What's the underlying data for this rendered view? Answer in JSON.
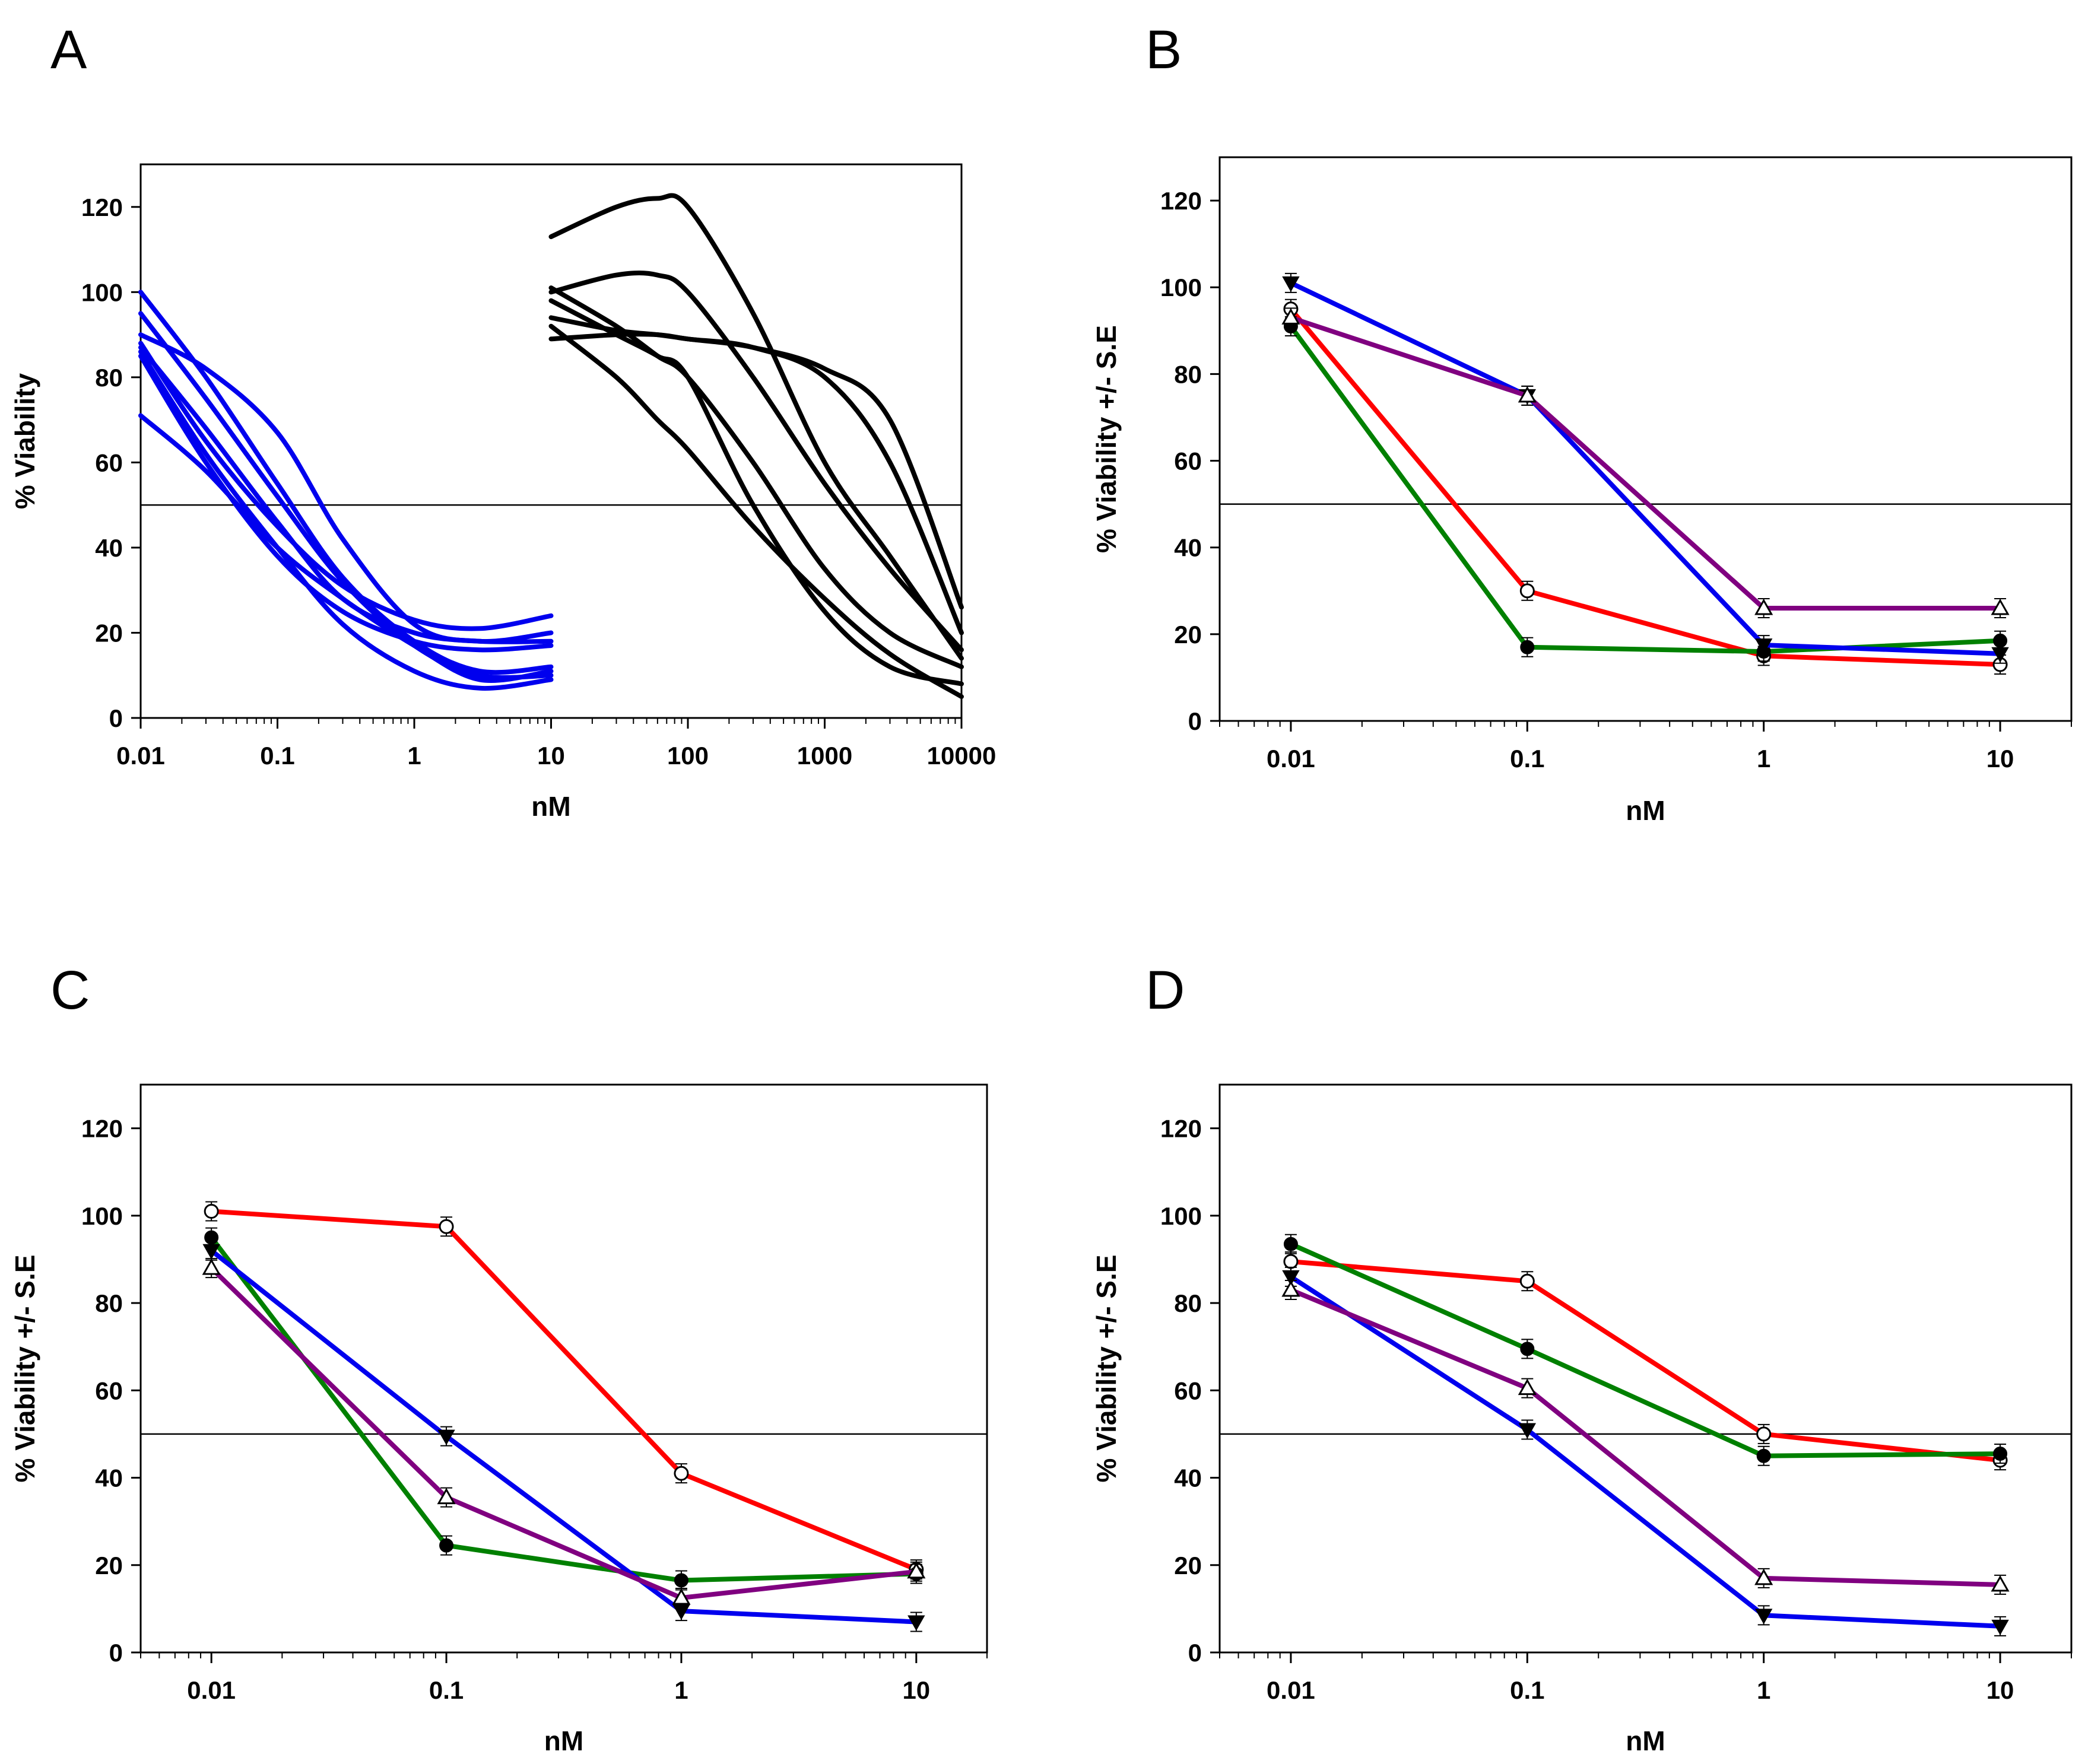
{
  "chart_data": [
    {
      "panel": "A",
      "type": "line",
      "title": "",
      "xlabel": "nM",
      "ylabel": "% Viability",
      "xscale": "log",
      "xlim": [
        0.01,
        10000
      ],
      "ylim": [
        0,
        130
      ],
      "xticks": [
        0.01,
        0.1,
        1,
        10,
        100,
        1000,
        10000
      ],
      "xtick_labels": [
        "0.01",
        "0.1",
        "1",
        "10",
        "100",
        "1000",
        "10000"
      ],
      "yticks": [
        0,
        20,
        40,
        60,
        80,
        100,
        120
      ],
      "ytick_labels": [
        "0",
        "20",
        "40",
        "60",
        "80",
        "100",
        "120"
      ],
      "reference_line": 50,
      "series": [
        {
          "name": "blue-curve-1",
          "color": "#0000ee",
          "x": [
            0.01,
            0.03,
            0.1,
            0.3,
            1,
            3,
            10
          ],
          "values": [
            100,
            80,
            55,
            33,
            18,
            11,
            12
          ]
        },
        {
          "name": "blue-curve-2",
          "color": "#0000ee",
          "x": [
            0.01,
            0.03,
            0.1,
            0.3,
            1,
            3,
            10
          ],
          "values": [
            95,
            75,
            52,
            32,
            17,
            10,
            10
          ]
        },
        {
          "name": "blue-curve-3",
          "color": "#0000ee",
          "x": [
            0.01,
            0.03,
            0.1,
            0.3,
            1,
            3,
            10
          ],
          "values": [
            90,
            82,
            67,
            42,
            22,
            18,
            20
          ]
        },
        {
          "name": "blue-curve-4",
          "color": "#0000ee",
          "x": [
            0.01,
            0.03,
            0.1,
            0.3,
            1,
            3,
            10
          ],
          "values": [
            88,
            65,
            45,
            31,
            23,
            21,
            24
          ]
        },
        {
          "name": "blue-curve-5",
          "color": "#0000ee",
          "x": [
            0.01,
            0.03,
            0.1,
            0.3,
            1,
            3,
            10
          ],
          "values": [
            87,
            68,
            46,
            28,
            20,
            18,
            18
          ]
        },
        {
          "name": "blue-curve-6",
          "color": "#0000ee",
          "x": [
            0.01,
            0.03,
            0.1,
            0.3,
            1,
            3,
            10
          ],
          "values": [
            86,
            62,
            40,
            22,
            11,
            7,
            9
          ]
        },
        {
          "name": "blue-curve-7",
          "color": "#0000ee",
          "x": [
            0.01,
            0.03,
            0.1,
            0.3,
            1,
            3,
            10
          ],
          "values": [
            85,
            60,
            38,
            25,
            18,
            16,
            17
          ]
        },
        {
          "name": "blue-curve-8",
          "color": "#0000ee",
          "x": [
            0.01,
            0.03,
            0.1,
            0.3,
            1,
            3,
            10
          ],
          "values": [
            71,
            58,
            40,
            28,
            17,
            9,
            11
          ]
        },
        {
          "name": "black-curve-1",
          "color": "#000000",
          "x": [
            10,
            30,
            60,
            100,
            300,
            1000,
            3000,
            10000
          ],
          "values": [
            113,
            120,
            122,
            120,
            95,
            60,
            38,
            14
          ]
        },
        {
          "name": "black-curve-2",
          "color": "#000000",
          "x": [
            10,
            30,
            60,
            100,
            300,
            1000,
            3000,
            10000
          ],
          "values": [
            100,
            104,
            104,
            100,
            80,
            55,
            35,
            16
          ]
        },
        {
          "name": "black-curve-3",
          "color": "#000000",
          "x": [
            10,
            30,
            60,
            100,
            300,
            1000,
            3000,
            10000
          ],
          "values": [
            101,
            92,
            85,
            80,
            60,
            35,
            20,
            12
          ]
        },
        {
          "name": "black-curve-4",
          "color": "#000000",
          "x": [
            10,
            30,
            60,
            100,
            300,
            1000,
            3000,
            10000
          ],
          "values": [
            98,
            90,
            85,
            80,
            50,
            25,
            12,
            8
          ]
        },
        {
          "name": "black-curve-5",
          "color": "#000000",
          "x": [
            10,
            30,
            60,
            100,
            300,
            1000,
            3000,
            10000
          ],
          "values": [
            94,
            91,
            90,
            89,
            87,
            80,
            60,
            20
          ]
        },
        {
          "name": "black-curve-6",
          "color": "#000000",
          "x": [
            10,
            30,
            60,
            100,
            300,
            1000,
            3000,
            10000
          ],
          "values": [
            92,
            80,
            70,
            63,
            45,
            28,
            15,
            5
          ]
        },
        {
          "name": "black-curve-7",
          "color": "#000000",
          "x": [
            10,
            30,
            60,
            100,
            300,
            1000,
            3000,
            10000
          ],
          "values": [
            89,
            90,
            90,
            89,
            87,
            82,
            70,
            26
          ]
        }
      ]
    },
    {
      "panel": "B",
      "type": "line",
      "title": "",
      "xlabel": "nM",
      "ylabel": "% Viability +/- S.E",
      "xscale": "log",
      "xlim": [
        0.005,
        20
      ],
      "ylim": [
        0,
        130
      ],
      "xticks": [
        0.01,
        0.1,
        1,
        10
      ],
      "xtick_labels": [
        "0.01",
        "0.1",
        "1",
        "10"
      ],
      "yticks": [
        0,
        20,
        40,
        60,
        80,
        100,
        120
      ],
      "ytick_labels": [
        "0",
        "20",
        "40",
        "60",
        "80",
        "100",
        "120"
      ],
      "reference_line": 50,
      "x": [
        0.01,
        0.1,
        1,
        10
      ],
      "series": [
        {
          "name": "red-open-circle",
          "color": "#ff0000",
          "marker": "open-circle",
          "values": [
            95,
            30,
            15,
            13
          ]
        },
        {
          "name": "green-filled-circle",
          "color": "#008000",
          "marker": "filled-circle",
          "values": [
            91,
            17,
            16,
            18.5
          ]
        },
        {
          "name": "blue-filled-triangle-down",
          "color": "#0000ee",
          "marker": "filled-triangle-down",
          "values": [
            101,
            75,
            17.5,
            15.5
          ]
        },
        {
          "name": "purple-open-triangle-up",
          "color": "#800080",
          "marker": "open-triangle-up",
          "values": [
            93,
            75,
            26,
            26
          ]
        }
      ]
    },
    {
      "panel": "C",
      "type": "line",
      "title": "",
      "xlabel": "nM",
      "ylabel": "% Viability +/- S.E",
      "xscale": "log",
      "xlim": [
        0.005,
        20
      ],
      "ylim": [
        0,
        130
      ],
      "xticks": [
        0.01,
        0.1,
        1,
        10
      ],
      "xtick_labels": [
        "0.01",
        "0.1",
        "1",
        "10"
      ],
      "yticks": [
        0,
        20,
        40,
        60,
        80,
        100,
        120
      ],
      "ytick_labels": [
        "0",
        "20",
        "40",
        "60",
        "80",
        "100",
        "120"
      ],
      "reference_line": 50,
      "x": [
        0.01,
        0.1,
        1,
        10
      ],
      "series": [
        {
          "name": "red-open-circle",
          "color": "#ff0000",
          "marker": "open-circle",
          "values": [
            101,
            97.5,
            41,
            19
          ]
        },
        {
          "name": "green-filled-circle",
          "color": "#008000",
          "marker": "filled-circle",
          "values": [
            95,
            24.5,
            16.5,
            18
          ]
        },
        {
          "name": "blue-filled-triangle-down",
          "color": "#0000ee",
          "marker": "filled-triangle-down",
          "values": [
            92,
            49.5,
            9.5,
            7
          ]
        },
        {
          "name": "purple-open-triangle-up",
          "color": "#800080",
          "marker": "open-triangle-up",
          "values": [
            88,
            35.5,
            12.5,
            18.5
          ]
        }
      ]
    },
    {
      "panel": "D",
      "type": "line",
      "title": "",
      "xlabel": "nM",
      "ylabel": "% Viability +/- S.E",
      "xscale": "log",
      "xlim": [
        0.005,
        20
      ],
      "ylim": [
        0,
        130
      ],
      "xticks": [
        0.01,
        0.1,
        1,
        10
      ],
      "xtick_labels": [
        "0.01",
        "0.1",
        "1",
        "10"
      ],
      "yticks": [
        0,
        20,
        40,
        60,
        80,
        100,
        120
      ],
      "ytick_labels": [
        "0",
        "20",
        "40",
        "60",
        "80",
        "100",
        "120"
      ],
      "reference_line": 50,
      "x": [
        0.01,
        0.1,
        1,
        10
      ],
      "series": [
        {
          "name": "red-open-circle",
          "color": "#ff0000",
          "marker": "open-circle",
          "values": [
            89.5,
            85,
            50,
            44
          ]
        },
        {
          "name": "green-filled-circle",
          "color": "#008000",
          "marker": "filled-circle",
          "values": [
            93.5,
            69.5,
            45,
            45.5
          ]
        },
        {
          "name": "blue-filled-triangle-down",
          "color": "#0000ee",
          "marker": "filled-triangle-down",
          "values": [
            86,
            51,
            8.5,
            6
          ]
        },
        {
          "name": "purple-open-triangle-up",
          "color": "#800080",
          "marker": "open-triangle-up",
          "values": [
            83,
            60.5,
            17,
            15.5
          ]
        }
      ]
    }
  ]
}
